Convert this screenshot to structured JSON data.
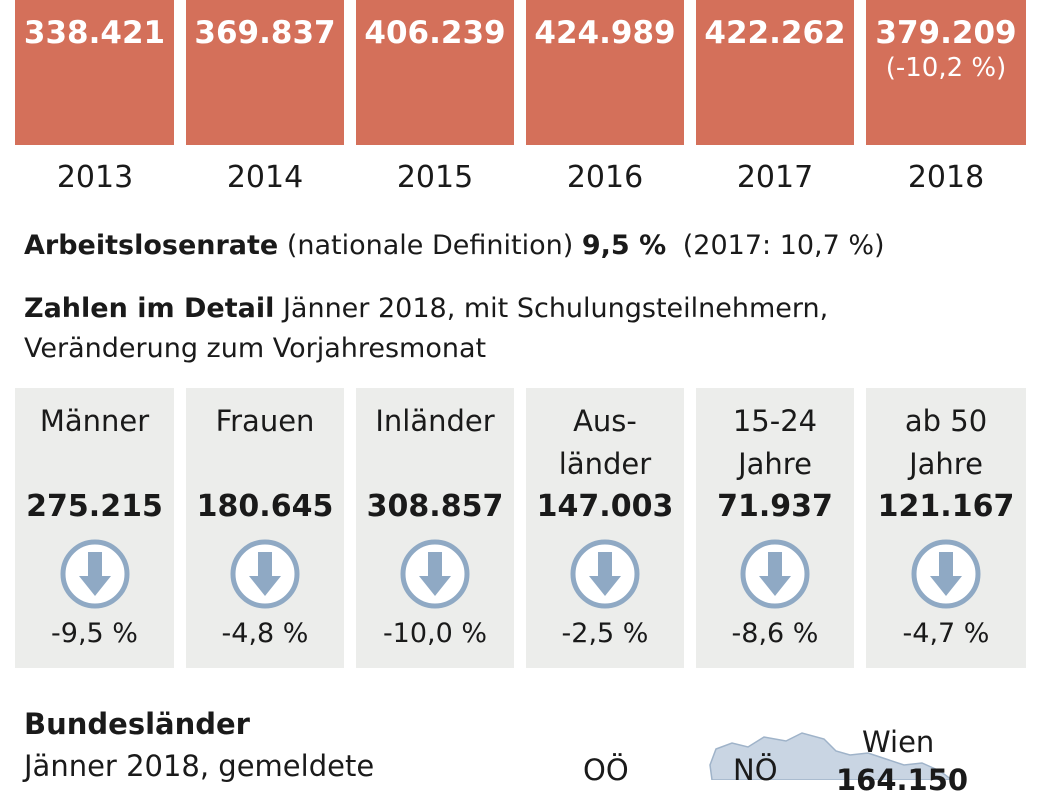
{
  "chart_data": {
    "type": "bar",
    "categories": [
      "2013",
      "2014",
      "2015",
      "2016",
      "2017",
      "2018"
    ],
    "values": [
      338421,
      369837,
      406239,
      424989,
      422262,
      379209
    ],
    "value_labels": [
      "338.421",
      "369.837",
      "406.239",
      "424.989",
      "422.262",
      "379.209"
    ],
    "annotations": [
      "",
      "",
      "",
      "",
      "",
      "(-10,2 %)"
    ],
    "bar_color": "#d4705a"
  },
  "rate": {
    "label": "Arbeitslosenrate",
    "definition": "(nationale Definition)",
    "value": "9,5 %",
    "previous": "(2017: 10,7 %)"
  },
  "detail": {
    "title": "Zahlen im Detail",
    "subtitle_line1": "Jänner 2018, mit Schulungsteilnehmern,",
    "subtitle_line2": "Veränderung zum Vorjahresmonat"
  },
  "groups": [
    {
      "label_line1": "Männer",
      "label_line2": "",
      "value": "275.215",
      "change": "-9,5 %",
      "icon": "arrow-down-circle-icon"
    },
    {
      "label_line1": "Frauen",
      "label_line2": "",
      "value": "180.645",
      "change": "-4,8 %",
      "icon": "arrow-down-circle-icon"
    },
    {
      "label_line1": "Inländer",
      "label_line2": "",
      "value": "308.857",
      "change": "-10,0 %",
      "icon": "arrow-down-circle-icon"
    },
    {
      "label_line1": "Aus-",
      "label_line2": "länder",
      "value": "147.003",
      "change": "-2,5 %",
      "icon": "arrow-down-circle-icon"
    },
    {
      "label_line1": "15-24",
      "label_line2": "Jahre",
      "value": "71.937",
      "change": "-8,6 %",
      "icon": "arrow-down-circle-icon"
    },
    {
      "label_line1": "ab 50",
      "label_line2": "Jahre",
      "value": "121.167",
      "change": "-4,7 %",
      "icon": "arrow-down-circle-icon"
    }
  ],
  "states": {
    "title": "Bundesländer",
    "subtitle": "Jänner 2018, gemeldete",
    "labels": {
      "ooe": "OÖ",
      "noe": "NÖ",
      "wien": "Wien"
    },
    "wien_value": "164.150"
  },
  "colors": {
    "bar": "#d4705a",
    "card": "#ecedeb",
    "icon": "#8fa9c4",
    "map": "#c9d5e3"
  }
}
